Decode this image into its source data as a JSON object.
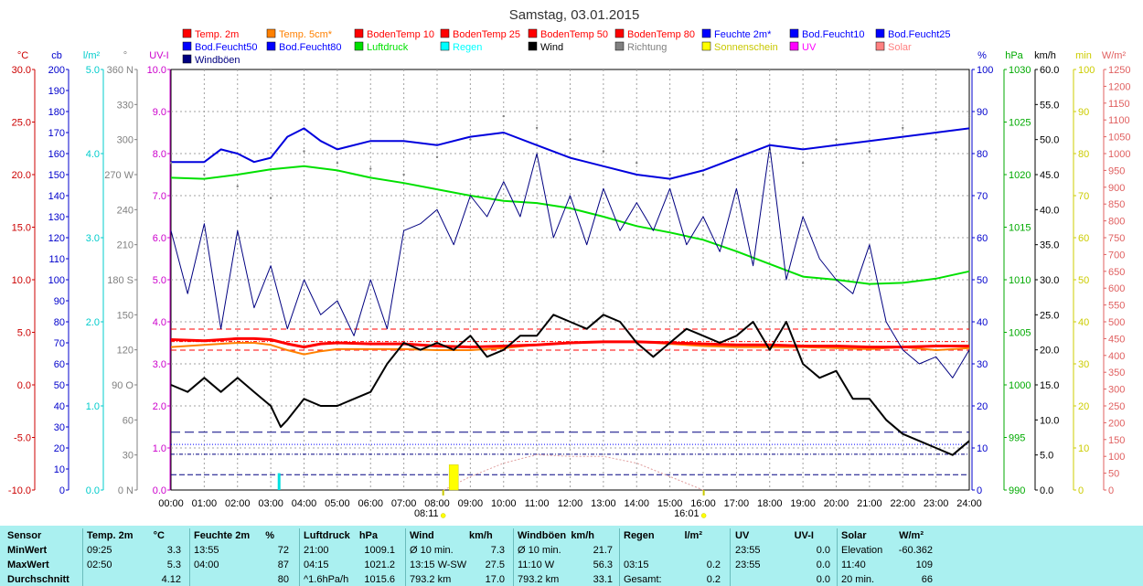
{
  "chart_data": {
    "type": "line",
    "title": "Samstag, 03.01.2015",
    "x_ticks": [
      "00:00",
      "01:00",
      "02:00",
      "03:00",
      "04:00",
      "05:00",
      "06:00",
      "07:00",
      "08:00",
      "09:00",
      "10:00",
      "11:00",
      "12:00",
      "13:00",
      "14:00",
      "15:00",
      "16:00",
      "17:00",
      "18:00",
      "19:00",
      "20:00",
      "21:00",
      "22:00",
      "23:00",
      "24:00"
    ],
    "x_range_hours": [
      0,
      24
    ],
    "sunrise": "08:11",
    "sunset": "16:01",
    "legend": [
      {
        "name": "Temp. 2m",
        "color": "#ff0000"
      },
      {
        "name": "Temp. 5cm*",
        "color": "#ff8000"
      },
      {
        "name": "BodenTemp 10",
        "color": "#ff0000"
      },
      {
        "name": "BodenTemp 25",
        "color": "#ff0000"
      },
      {
        "name": "BodenTemp 50",
        "color": "#ff0000"
      },
      {
        "name": "BodenTemp 80",
        "color": "#ff0000"
      },
      {
        "name": "Feuchte 2m*",
        "color": "#0000ff"
      },
      {
        "name": "Bod.Feucht10",
        "color": "#0000ff"
      },
      {
        "name": "Bod.Feucht25",
        "color": "#0000ff"
      },
      {
        "name": "Bod.Feucht50",
        "color": "#0000ff"
      },
      {
        "name": "Bod.Feucht80",
        "color": "#0000ff"
      },
      {
        "name": "Luftdruck",
        "color": "#00e000"
      },
      {
        "name": "Regen",
        "color": "#00ffff"
      },
      {
        "name": "Wind",
        "color": "#000000"
      },
      {
        "name": "Richtung",
        "color": "#808080"
      },
      {
        "name": "Sonnenschein",
        "color": "#ffff00"
      },
      {
        "name": "UV",
        "color": "#ff00ff"
      },
      {
        "name": "Solar",
        "color": "#ff8080"
      },
      {
        "name": "Windböen",
        "color": "#000080"
      }
    ],
    "axes": [
      {
        "unit": "°C",
        "color": "#cc0000",
        "range": [
          -10,
          30
        ],
        "ticks": [
          "30.0",
          "25.0",
          "20.0",
          "15.0",
          "10.0",
          "5.0",
          "0.0",
          "-5.0",
          "-10.0"
        ]
      },
      {
        "unit": "cb",
        "color": "#0000cc",
        "range": [
          0,
          200
        ],
        "ticks": [
          "200",
          "190",
          "180",
          "170",
          "160",
          "150",
          "140",
          "130",
          "120",
          "110",
          "100",
          "90",
          "80",
          "70",
          "60",
          "50",
          "40",
          "30",
          "20",
          "10",
          "0"
        ]
      },
      {
        "unit": "l/m²",
        "color": "#00cccc",
        "range": [
          0,
          5
        ],
        "ticks": [
          "5.0",
          "4.0",
          "3.0",
          "2.0",
          "1.0",
          "0.0"
        ]
      },
      {
        "unit": "°",
        "color": "#808080",
        "range": [
          0,
          360
        ],
        "ticks": [
          "360 N",
          "330",
          "300",
          "270 W",
          "240",
          "210",
          "180 S",
          "150",
          "120",
          "90 O",
          "60",
          "30",
          "0 N"
        ]
      },
      {
        "unit": "UV-I",
        "color": "#cc00cc",
        "range": [
          0,
          10
        ],
        "ticks": [
          "10.0",
          "9.0",
          "8.0",
          "7.0",
          "6.0",
          "5.0",
          "4.0",
          "3.0",
          "2.0",
          "1.0",
          "0.0"
        ]
      },
      {
        "unit": "%",
        "color": "#0000cc",
        "range": [
          0,
          100
        ],
        "ticks": [
          "100",
          "90",
          "80",
          "70",
          "60",
          "50",
          "40",
          "30",
          "20",
          "10",
          "0"
        ]
      },
      {
        "unit": "hPa",
        "color": "#00aa00",
        "range": [
          990,
          1030
        ],
        "ticks": [
          "1030",
          "1025",
          "1020",
          "1015",
          "1010",
          "1005",
          "1000",
          "995",
          "990"
        ]
      },
      {
        "unit": "km/h",
        "color": "#000000",
        "range": [
          0,
          60
        ],
        "ticks": [
          "60.0",
          "55.0",
          "50.0",
          "45.0",
          "40.0",
          "35.0",
          "30.0",
          "25.0",
          "20.0",
          "15.0",
          "10.0",
          "5.0",
          "0.0"
        ]
      },
      {
        "unit": "min",
        "color": "#cccc00",
        "range": [
          0,
          100
        ],
        "ticks": [
          "100",
          "90",
          "80",
          "70",
          "60",
          "50",
          "40",
          "30",
          "20",
          "10",
          "0"
        ]
      },
      {
        "unit": "W/m²",
        "color": "#e06060",
        "range": [
          0,
          1250
        ],
        "ticks": [
          "1250",
          "1200",
          "1150",
          "1100",
          "1050",
          "1000",
          "950",
          "900",
          "850",
          "800",
          "750",
          "700",
          "650",
          "600",
          "550",
          "500",
          "450",
          "400",
          "350",
          "300",
          "250",
          "200",
          "150",
          "100",
          "50",
          "0"
        ]
      }
    ],
    "series": [
      {
        "name": "Temp. 2m",
        "unit": "°C",
        "x": [
          0,
          1,
          2,
          2.5,
          3,
          3.5,
          4,
          4.5,
          5,
          6,
          7,
          8,
          9,
          10,
          11,
          12,
          13,
          14,
          15,
          16,
          17,
          18,
          19,
          20,
          21,
          22,
          23,
          24
        ],
        "y": [
          4.3,
          4.2,
          4.4,
          4.4,
          4.3,
          3.9,
          3.6,
          3.9,
          4.0,
          3.9,
          3.9,
          3.7,
          3.6,
          3.7,
          3.8,
          4.0,
          4.1,
          4.1,
          4.0,
          3.9,
          3.8,
          3.8,
          3.7,
          3.7,
          3.6,
          3.6,
          3.7,
          3.7
        ]
      },
      {
        "name": "Temp. 5cm*",
        "unit": "°C",
        "x": [
          0,
          1,
          2,
          2.5,
          3,
          3.5,
          4,
          4.5,
          5,
          6,
          7,
          8,
          9,
          10,
          11,
          12,
          13,
          14,
          15,
          16,
          17,
          18,
          19,
          20,
          21,
          22,
          23,
          24
        ],
        "y": [
          3.6,
          3.8,
          4.0,
          4.0,
          3.8,
          3.3,
          2.9,
          3.2,
          3.4,
          3.4,
          3.4,
          3.3,
          3.3,
          3.5,
          3.8,
          4.0,
          4.1,
          4.1,
          3.9,
          3.7,
          3.6,
          3.6,
          3.6,
          3.5,
          3.4,
          3.6,
          3.3,
          3.5
        ]
      },
      {
        "name": "Feuchte 2m*",
        "unit": "%",
        "x": [
          0,
          1,
          1.5,
          2,
          2.5,
          3,
          3.5,
          4,
          4.5,
          5,
          6,
          7,
          8,
          9,
          10,
          11,
          12,
          13,
          14,
          15,
          16,
          17,
          18,
          19,
          20,
          21,
          22,
          23,
          24
        ],
        "y": [
          78,
          78,
          81,
          80,
          78,
          79,
          84,
          86,
          83,
          81,
          83,
          83,
          82,
          84,
          85,
          82,
          79,
          77,
          75,
          74,
          76,
          79,
          82,
          81,
          82,
          83,
          84,
          85,
          86
        ]
      },
      {
        "name": "Luftdruck",
        "unit": "hPa",
        "x": [
          0,
          1,
          2,
          3,
          4,
          5,
          6,
          7,
          8,
          9,
          10,
          11,
          12,
          13,
          14,
          15,
          16,
          17,
          18,
          19,
          20,
          21,
          22,
          23,
          24
        ],
        "y": [
          1019.7,
          1019.6,
          1020.0,
          1020.5,
          1020.8,
          1020.4,
          1019.7,
          1019.2,
          1018.6,
          1018.0,
          1017.5,
          1017.3,
          1016.8,
          1016.0,
          1015.1,
          1014.5,
          1013.8,
          1012.7,
          1011.5,
          1010.3,
          1010.0,
          1009.6,
          1009.7,
          1010.1,
          1010.8
        ]
      },
      {
        "name": "Wind",
        "unit": "km/h",
        "x": [
          0,
          0.5,
          1,
          1.5,
          2,
          2.5,
          3,
          3.3,
          3.5,
          4,
          4.5,
          5,
          5.5,
          6,
          6.5,
          7,
          7.5,
          8,
          8.5,
          9,
          9.5,
          10,
          10.5,
          11,
          11.5,
          12,
          12.5,
          13,
          13.5,
          14,
          14.5,
          15,
          15.5,
          16,
          16.5,
          17,
          17.5,
          18,
          18.5,
          19,
          19.5,
          20,
          20.5,
          21,
          21.5,
          22,
          22.5,
          23,
          23.5,
          24
        ],
        "y": [
          15,
          14,
          16,
          14,
          16,
          14,
          12,
          9,
          10,
          13,
          12,
          12,
          13,
          14,
          18,
          21,
          20,
          21,
          20,
          22,
          19,
          20,
          22,
          22,
          25,
          24,
          23,
          25,
          24,
          21,
          19,
          21,
          23,
          22,
          21,
          22,
          24,
          20,
          24,
          18,
          16,
          17,
          13,
          13,
          10,
          8,
          7,
          6,
          5,
          7
        ]
      },
      {
        "name": "Windböen",
        "unit": "km/h",
        "x": [
          0,
          0.5,
          1,
          1.5,
          2,
          2.5,
          3,
          3.5,
          4,
          4.5,
          5,
          5.5,
          6,
          6.5,
          7,
          7.5,
          8,
          8.5,
          9,
          9.5,
          10,
          10.5,
          11,
          11.5,
          12,
          12.5,
          13,
          13.5,
          14,
          14.5,
          15,
          15.5,
          16,
          16.5,
          17,
          17.5,
          18,
          18.5,
          19,
          19.5,
          20,
          20.5,
          21,
          21.5,
          22,
          22.5,
          23,
          23.5,
          24
        ],
        "y": [
          37,
          28,
          38,
          23,
          37,
          26,
          32,
          23,
          30,
          25,
          27,
          22,
          30,
          23,
          37,
          38,
          40,
          35,
          42,
          39,
          44,
          39,
          48,
          36,
          42,
          35,
          43,
          37,
          41,
          37,
          43,
          35,
          39,
          34,
          43,
          32,
          49,
          30,
          39,
          33,
          30,
          28,
          35,
          24,
          20,
          18,
          19,
          16,
          20
        ]
      },
      {
        "name": "Richtung",
        "unit": "°",
        "x": [
          0,
          1,
          2,
          3,
          4,
          5,
          6,
          7,
          8,
          9,
          10,
          11,
          12,
          13,
          14,
          15,
          16,
          17,
          18,
          19,
          20,
          21,
          22,
          23,
          24
        ],
        "y": [
          280,
          270,
          260,
          250,
          290,
          280,
          275,
          270,
          285,
          300,
          320,
          310,
          300,
          290,
          280,
          270,
          270,
          300,
          290,
          280,
          300,
          290,
          310,
          300,
          320
        ]
      },
      {
        "name": "Solar",
        "unit": "W/m²",
        "x": [
          8.2,
          9,
          10,
          11,
          12,
          13,
          14,
          15,
          16
        ],
        "y": [
          0,
          40,
          80,
          105,
          100,
          100,
          80,
          40,
          0
        ]
      },
      {
        "name": "Regen",
        "unit": "l/m²",
        "x": [
          3.25
        ],
        "y": [
          0.2
        ]
      },
      {
        "name": "Sonnenschein",
        "unit": "min",
        "x": [
          8.5
        ],
        "y": [
          6
        ]
      }
    ],
    "reference_lines": [
      {
        "name": "Temp. 2m MaxWert",
        "unit": "°C",
        "value": 5.3
      },
      {
        "name": "Temp. 2m MinWert",
        "unit": "°C",
        "value": 3.3
      },
      {
        "name": "Temp. 2m Durchschnitt",
        "unit": "°C",
        "value": 4.12
      },
      {
        "name": "Wind MaxWert",
        "unit": "km/h",
        "value": 27.5
      },
      {
        "name": "Wind Durchschnitt",
        "unit": "km/h",
        "value": 17.0
      },
      {
        "name": "Wind MinWert",
        "unit": "km/h",
        "value": 7.3
      },
      {
        "name": "Windböen MinWert",
        "unit": "km/h",
        "value": 21.7
      }
    ]
  },
  "stats": {
    "headers": [
      "Sensor",
      "Temp. 2m",
      "°C",
      "Feuchte 2m",
      "%",
      "Luftdruck",
      "hPa",
      "Wind",
      "km/h",
      "Windböen",
      "km/h",
      "Regen",
      "l/m²",
      "UV",
      "UV-I",
      "Solar",
      "W/m²"
    ],
    "row_labels": [
      "MinWert",
      "MaxWert",
      "Durchschnitt"
    ],
    "rows": [
      [
        "09:25",
        "3.3",
        "13:55",
        "72",
        "21:00",
        "1009.1",
        "Ø 10 min.",
        "7.3",
        "Ø 10 min.",
        "21.7",
        "",
        "",
        "23:55",
        "0.0",
        "Elevation",
        "-60.362"
      ],
      [
        "02:50",
        "5.3",
        "04:00",
        "87",
        "04:15",
        "1021.2",
        "13:15   W-SW",
        "27.5",
        "11:10   W",
        "56.3",
        "03:15",
        "0.2",
        "23:55",
        "0.0",
        "11:40",
        "109"
      ],
      [
        "",
        "4.12",
        "",
        "80",
        "^1.6hPa/h",
        "1015.6",
        "793.2 km",
        "17.0",
        "793.2 km",
        "33.1",
        "Gesamt:",
        "0.2",
        "",
        "0.0",
        "20 min.",
        "66"
      ]
    ]
  }
}
